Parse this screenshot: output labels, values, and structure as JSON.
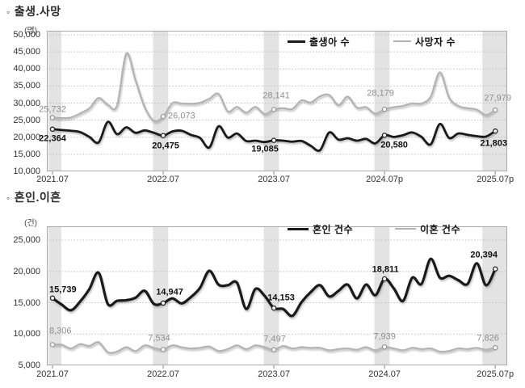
{
  "page": {
    "bullet": "◦",
    "section1_title": "출생.사망",
    "section2_title": "혼인.이혼"
  },
  "chart_data": [
    {
      "type": "line",
      "title": "출생.사망",
      "unit_label": "(명)",
      "x_tick_labels": [
        "2021.07",
        "2022.07",
        "2023.07",
        "2024.07p",
        "2025.07p"
      ],
      "x_tick_indices": [
        0,
        12,
        24,
        36,
        48
      ],
      "x_range_months": [
        "2021.07",
        "2025.07"
      ],
      "ylim": [
        10000,
        51200
      ],
      "yticks": [
        10000,
        15000,
        20000,
        25000,
        30000,
        35000,
        40000,
        45000,
        50000
      ],
      "grid": "dotted-horizontal",
      "band_ranges": [
        [
          -0.45,
          0.95
        ],
        [
          10.9,
          12.55
        ],
        [
          22.9,
          24.55
        ],
        [
          34.9,
          36.55
        ],
        [
          46.6,
          49.2
        ]
      ],
      "legend_position": "top-inside",
      "series": [
        {
          "name": "출생아 수",
          "color": "#1a1a1a",
          "width": 2.8,
          "marker_indices": [
            0,
            12,
            24,
            36,
            48
          ],
          "label_color": "#111111",
          "label_bold": true,
          "values": [
            22364,
            22100,
            21900,
            21500,
            20100,
            18500,
            24500,
            20900,
            22900,
            21300,
            22000,
            21300,
            20475,
            21700,
            21900,
            20700,
            19800,
            17000,
            23200,
            19900,
            21100,
            18900,
            19000,
            18600,
            19085,
            19000,
            18700,
            18900,
            17500,
            16200,
            21400,
            19300,
            19700,
            19000,
            19500,
            18200,
            20580,
            20100,
            20600,
            21400,
            20100,
            17900,
            23900,
            19800,
            21100,
            20700,
            20300,
            20200,
            21803
          ],
          "labels": [
            {
              "i": 0,
              "text": "22,364",
              "dx": 0,
              "dy": 12,
              "anchor": "middle"
            },
            {
              "i": 12,
              "text": "20,475",
              "dx": 3,
              "dy": 13,
              "anchor": "middle"
            },
            {
              "i": 24,
              "text": "19,085",
              "dx": -11,
              "dy": 11,
              "anchor": "middle"
            },
            {
              "i": 36,
              "text": "20,580",
              "dx": 12,
              "dy": 13,
              "anchor": "middle"
            },
            {
              "i": 48,
              "text": "21,803",
              "dx": -2,
              "dy": 16,
              "anchor": "middle"
            }
          ]
        },
        {
          "name": "사망자 수",
          "color": "#b3b3b3",
          "width": 2.2,
          "marker_indices": [
            0,
            12,
            24,
            36,
            48
          ],
          "label_color": "#8f8f8f",
          "label_bold": false,
          "values": [
            25732,
            25600,
            25800,
            27000,
            28500,
            31500,
            29500,
            29300,
            44500,
            36700,
            28800,
            24800,
            26073,
            30000,
            29900,
            29800,
            30100,
            31300,
            32700,
            27600,
            28900,
            27200,
            28900,
            26800,
            28141,
            28500,
            28300,
            30800,
            30200,
            32000,
            32400,
            29400,
            31900,
            28700,
            28800,
            26900,
            28179,
            28800,
            29200,
            29900,
            29900,
            31900,
            39000,
            31600,
            29200,
            28500,
            28100,
            26500,
            27979
          ],
          "labels": [
            {
              "i": 0,
              "text": "25,732",
              "dx": 0,
              "dy": -10,
              "anchor": "middle"
            },
            {
              "i": 12,
              "text": "26,073",
              "dx": 6,
              "dy": 0,
              "anchor": "start"
            },
            {
              "i": 24,
              "text": "28,141",
              "dx": 3,
              "dy": -16,
              "anchor": "middle"
            },
            {
              "i": 36,
              "text": "28,179",
              "dx": -5,
              "dy": -19,
              "anchor": "middle"
            },
            {
              "i": 48,
              "text": "27,979",
              "dx": 3,
              "dy": -14,
              "anchor": "middle"
            }
          ]
        }
      ]
    },
    {
      "type": "line",
      "title": "혼인.이혼",
      "unit_label": "(건)",
      "x_tick_labels": [
        "2021.07",
        "2022.07",
        "2023.07",
        "2024.07",
        "2025.07p"
      ],
      "x_tick_indices": [
        0,
        12,
        24,
        36,
        48
      ],
      "x_range_months": [
        "2021.07",
        "2025.07"
      ],
      "ylim": [
        5000,
        27200
      ],
      "yticks": [
        5000,
        10000,
        15000,
        20000,
        25000
      ],
      "grid": "dotted-horizontal",
      "band_ranges": [
        [
          -0.45,
          0.95
        ],
        [
          10.9,
          12.55
        ],
        [
          22.9,
          24.55
        ],
        [
          34.9,
          36.55
        ],
        [
          46.6,
          49.2
        ]
      ],
      "legend_position": "top-inside",
      "series": [
        {
          "name": "혼인 건수",
          "color": "#1a1a1a",
          "width": 3.2,
          "marker_indices": [
            0,
            12,
            24,
            36,
            48
          ],
          "label_color": "#111111",
          "label_bold": true,
          "values": [
            15739,
            14700,
            13800,
            15200,
            17200,
            19800,
            14800,
            15300,
            15400,
            15800,
            16900,
            14800,
            14947,
            15700,
            14900,
            15900,
            17400,
            20100,
            17900,
            17800,
            18200,
            14000,
            17200,
            16100,
            14153,
            14000,
            12900,
            15100,
            16700,
            17800,
            16000,
            16900,
            17900,
            15700,
            17900,
            16200,
            18811,
            17300,
            15300,
            19000,
            18000,
            22000,
            19000,
            19300,
            18600,
            18000,
            21300,
            17800,
            20394
          ],
          "labels": [
            {
              "i": 0,
              "text": "15,739",
              "dx": -4,
              "dy": -10,
              "anchor": "start"
            },
            {
              "i": 12,
              "text": "14,947",
              "dx": 8,
              "dy": -13,
              "anchor": "middle"
            },
            {
              "i": 24,
              "text": "14,153",
              "dx": 9,
              "dy": -12,
              "anchor": "middle"
            },
            {
              "i": 36,
              "text": "18,811",
              "dx": 1,
              "dy": -11,
              "anchor": "middle"
            },
            {
              "i": 48,
              "text": "20,394",
              "dx": -14,
              "dy": -17,
              "anchor": "middle"
            }
          ]
        },
        {
          "name": "이혼 건수",
          "color": "#b3b3b3",
          "width": 2.2,
          "marker_indices": [
            0,
            12,
            24,
            36,
            48
          ],
          "label_color": "#8f8f8f",
          "label_bold": false,
          "values": [
            8306,
            8300,
            7700,
            8400,
            8100,
            8700,
            7100,
            7200,
            7900,
            7300,
            8200,
            7800,
            7534,
            8200,
            7900,
            7700,
            7800,
            8000,
            7300,
            7600,
            8200,
            7600,
            8200,
            7900,
            7497,
            8100,
            7700,
            7900,
            7800,
            7800,
            7400,
            7600,
            7700,
            7500,
            7900,
            7400,
            7939,
            7700,
            7400,
            7800,
            7600,
            7700,
            7200,
            7300,
            7700,
            7600,
            7800,
            7500,
            7826
          ],
          "labels": [
            {
              "i": 0,
              "text": "8,306",
              "dx": -4,
              "dy": -16,
              "anchor": "start"
            },
            {
              "i": 12,
              "text": "7,534",
              "dx": -5,
              "dy": -13,
              "anchor": "middle"
            },
            {
              "i": 24,
              "text": "7,497",
              "dx": 1,
              "dy": -13,
              "anchor": "middle"
            },
            {
              "i": 36,
              "text": "7,939",
              "dx": 0,
              "dy": -12,
              "anchor": "middle"
            },
            {
              "i": 48,
              "text": "7,826",
              "dx": -9,
              "dy": -11,
              "anchor": "middle"
            }
          ]
        }
      ]
    }
  ],
  "style": {
    "band_color": "#e3e3e3",
    "grid_color": "#c0c0c0",
    "border_color": "#a8a8a8",
    "tick_color": "#888888",
    "axis_text_color": "#333333"
  }
}
